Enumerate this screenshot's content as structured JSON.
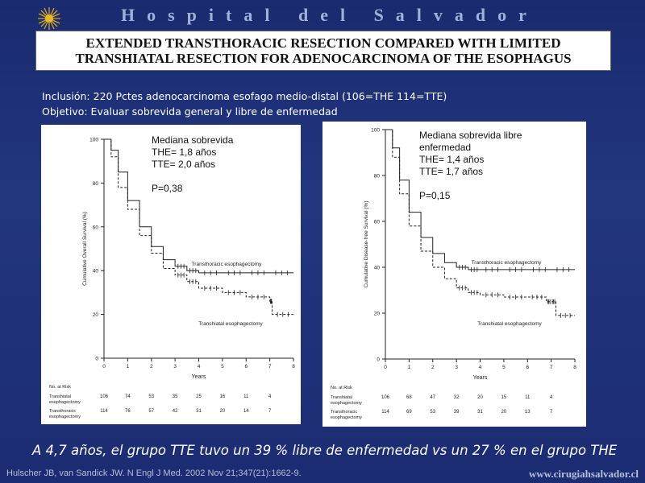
{
  "header": {
    "hospital": "Hospital del Salvador",
    "title_line1": "EXTENDED TRANSTHORACIC RESECTION COMPARED WITH LIMITED",
    "title_line2": "TRANSHIATAL RESECTION FOR ADENOCARCINOMA OF THE ESOPHAGUS"
  },
  "subtitle": {
    "line1": "Inclusión: 220  Pctes adenocarcinoma esofago medio-distal (106=THE 114=TTE)",
    "line2": "Objetivo: Evaluar sobrevida general y libre de enfermedad"
  },
  "conclusion": "A  4,7 años, el grupo TTE tuvo un 39 % libre de enfermedad vs un 27 % en el grupo THE",
  "citation": "Hulscher JB, van Sandick JW. N Engl J Med. 2002 Nov 21;347(21):1662-9.",
  "website": "www.cirugiahsalvador.cl",
  "colors": {
    "background": "#1f3178",
    "title_text": "#9fb2da",
    "panel": "#ffffff"
  },
  "chart_data": [
    {
      "type": "line",
      "note": [
        "Mediana sobrevida",
        "THE= 1,8 años",
        "TTE= 2,0 años",
        "",
        "P=0,38"
      ],
      "ylabel": "Cumulative Overall Survival (%)",
      "xlabel": "Years",
      "xlim": [
        0,
        8
      ],
      "ylim": [
        0,
        100
      ],
      "xticks": [
        "0",
        "1",
        "2",
        "3",
        "4",
        "5",
        "6",
        "7",
        "8"
      ],
      "yticks": [
        "0",
        "20",
        "40",
        "60",
        "80",
        "100"
      ],
      "series": [
        {
          "name": "Transthoracic esophagectomy",
          "dash": false,
          "x": [
            0,
            0.3,
            0.6,
            1,
            1.5,
            2,
            2.5,
            3,
            3.5,
            4,
            5,
            6,
            7,
            8
          ],
          "y": [
            100,
            95,
            85,
            72,
            60,
            51,
            45,
            42,
            40,
            39,
            39,
            39,
            39,
            39
          ]
        },
        {
          "name": "Transhiatal esophagectomy",
          "dash": true,
          "x": [
            0,
            0.3,
            0.6,
            1,
            1.5,
            2,
            2.5,
            3,
            3.5,
            4,
            5,
            6,
            7,
            7.1,
            8
          ],
          "y": [
            100,
            92,
            78,
            68,
            56,
            48,
            41,
            38,
            35,
            32,
            30,
            28,
            26,
            20,
            20
          ]
        }
      ],
      "at_risk": {
        "header": "No. at Risk",
        "rows": [
          {
            "label": [
              "Transhiatal",
              "esophagectomy"
            ],
            "values": [
              "106",
              "74",
              "53",
              "35",
              "25",
              "16",
              "11",
              "4"
            ]
          },
          {
            "label": [
              "Transthoracic",
              "esophagectomy"
            ],
            "values": [
              "114",
              "76",
              "57",
              "42",
              "31",
              "20",
              "14",
              "7"
            ]
          }
        ]
      }
    },
    {
      "type": "line",
      "note": [
        "Mediana sobrevida libre",
        "enfermedad",
        "THE= 1,4 años",
        "TTE= 1,7 años",
        "",
        "P=0,15"
      ],
      "ylabel": "Cumulative Disease-free Survival (%)",
      "xlabel": "Years",
      "xlim": [
        0,
        8
      ],
      "ylim": [
        0,
        100
      ],
      "xticks": [
        "0",
        "1",
        "2",
        "3",
        "4",
        "5",
        "6",
        "7",
        "8"
      ],
      "yticks": [
        "0",
        "20",
        "40",
        "60",
        "80",
        "100"
      ],
      "series": [
        {
          "name": "Transthoracic esophagectomy",
          "dash": false,
          "x": [
            0,
            0.3,
            0.6,
            1,
            1.5,
            2,
            2.5,
            3,
            3.5,
            4,
            5,
            6,
            7,
            8
          ],
          "y": [
            100,
            92,
            78,
            64,
            53,
            46,
            42,
            40,
            39,
            39,
            39,
            39,
            39,
            39
          ]
        },
        {
          "name": "Transhiatal esophagectomy",
          "dash": true,
          "x": [
            0,
            0.3,
            0.6,
            1,
            1.5,
            2,
            2.5,
            3,
            3.5,
            4,
            5,
            6,
            6.8,
            7,
            7.2,
            8
          ],
          "y": [
            100,
            88,
            72,
            58,
            47,
            40,
            35,
            31,
            29,
            28,
            27,
            27,
            25,
            25,
            19,
            19
          ]
        }
      ],
      "at_risk": {
        "header": "No. at Risk",
        "rows": [
          {
            "label": [
              "Transhiatal",
              "esophagectomy"
            ],
            "values": [
              "106",
              "68",
              "47",
              "32",
              "20",
              "15",
              "11",
              "4"
            ]
          },
          {
            "label": [
              "Transthoracic",
              "esophagectomy"
            ],
            "values": [
              "114",
              "69",
              "53",
              "39",
              "31",
              "20",
              "13",
              "7"
            ]
          }
        ]
      }
    }
  ]
}
